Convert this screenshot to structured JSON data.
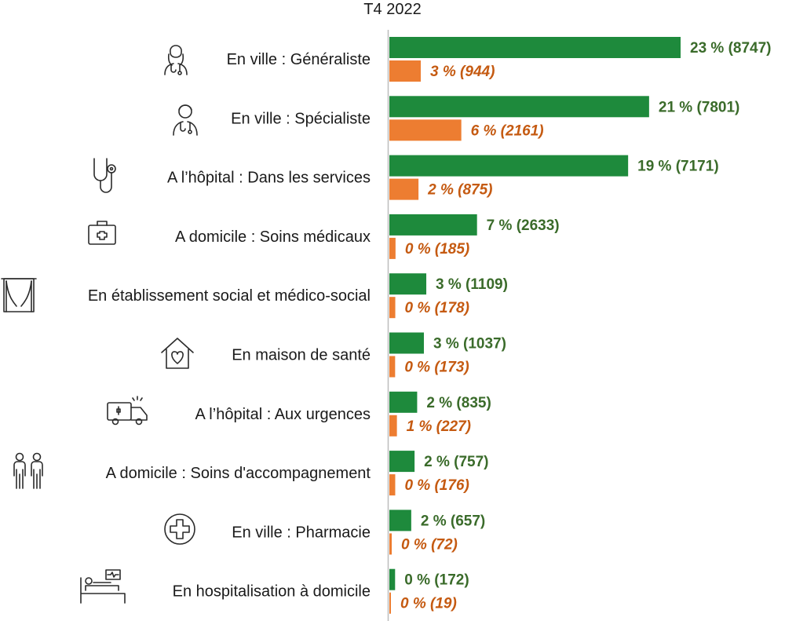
{
  "chart_data": {
    "type": "bar",
    "orientation": "horizontal",
    "title": "T4 2022",
    "categories": [
      "En ville : Généraliste",
      "En ville : Spécialiste",
      "A l’hôpital : Dans les services",
      "A domicile : Soins médicaux",
      "En établissement social et médico-social",
      "En maison de santé",
      "A l’hôpital : Aux urgences",
      "A domicile : Soins d'accompagnement",
      "En ville : Pharmacie",
      "En hospitalisation à domicile"
    ],
    "icons": [
      "female-doctor-icon",
      "male-doctor-icon",
      "stethoscope-icon",
      "medical-kit-icon",
      "window-curtains-icon",
      "house-heart-icon",
      "ambulance-icon",
      "two-people-icon",
      "pharmacy-cross-icon",
      "hospital-bed-icon"
    ],
    "series": [
      {
        "color": "#1e8a3c",
        "label_color": "#3a6b2a",
        "values": [
          8747,
          7801,
          7171,
          2633,
          1109,
          1037,
          835,
          757,
          657,
          172
        ],
        "labels": [
          "23 % (8747)",
          "21 % (7801)",
          "19 % (7171)",
          "7 % (2633)",
          "3 % (1109)",
          "3 % (1037)",
          "2 % (835)",
          "2 % (757)",
          "2 % (657)",
          "0 % (172)"
        ]
      },
      {
        "color": "#ed7d31",
        "label_color": "#c55a11",
        "values": [
          944,
          2161,
          875,
          185,
          178,
          173,
          227,
          176,
          72,
          19
        ],
        "labels": [
          "3 % (944)",
          "6 % (2161)",
          "2 % (875)",
          "0 % (185)",
          "0 % (178)",
          "0 % (173)",
          "1 % (227)",
          "0 % (176)",
          "0 % (72)",
          "0 % (19)"
        ]
      }
    ],
    "xlim": [
      0,
      8747
    ],
    "grid": false,
    "legend": "none"
  }
}
